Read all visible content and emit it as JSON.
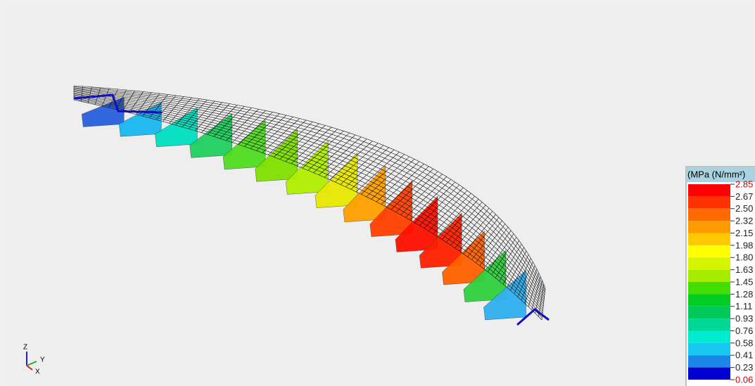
{
  "legend": {
    "title": "(MPa (N/mm²)",
    "labels": [
      "2.85",
      "2.67",
      "2.50",
      "2.32",
      "2.15",
      "1.98",
      "1.80",
      "1.63",
      "1.45",
      "1.28",
      "1.11",
      "0.93",
      "0.76",
      "0.58",
      "0.41",
      "0.23",
      "0.06"
    ],
    "colors": [
      "#ff0000",
      "#ff3300",
      "#ff6a00",
      "#ff9a00",
      "#ffc800",
      "#ffff00",
      "#d4f500",
      "#a6ec00",
      "#44dd00",
      "#00cc22",
      "#00c85a",
      "#00d896",
      "#00ecd0",
      "#18c8f0",
      "#1a86e8",
      "#0000d0"
    ],
    "extreme_color": "#cc0000"
  },
  "triad": {
    "z": "Z",
    "y": "Y",
    "x": "X"
  }
}
